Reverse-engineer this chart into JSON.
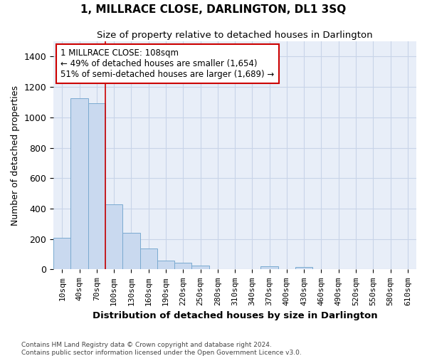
{
  "title": "1, MILLRACE CLOSE, DARLINGTON, DL1 3SQ",
  "subtitle": "Size of property relative to detached houses in Darlington",
  "xlabel": "Distribution of detached houses by size in Darlington",
  "ylabel": "Number of detached properties",
  "categories": [
    "10sqm",
    "40sqm",
    "70sqm",
    "100sqm",
    "130sqm",
    "160sqm",
    "190sqm",
    "220sqm",
    "250sqm",
    "280sqm",
    "310sqm",
    "340sqm",
    "370sqm",
    "400sqm",
    "430sqm",
    "460sqm",
    "490sqm",
    "520sqm",
    "550sqm",
    "580sqm",
    "610sqm"
  ],
  "values": [
    210,
    1125,
    1095,
    430,
    240,
    140,
    60,
    45,
    25,
    0,
    0,
    0,
    20,
    0,
    18,
    0,
    0,
    0,
    0,
    0,
    0
  ],
  "bar_color": "#c9d9ef",
  "bar_edge_color": "#7aaad0",
  "grid_color": "#c8d4e8",
  "background_color": "#e8eef8",
  "vline_color": "#cc0000",
  "vline_x": 2.5,
  "annotation_text": "1 MILLRACE CLOSE: 108sqm\n← 49% of detached houses are smaller (1,654)\n51% of semi-detached houses are larger (1,689) →",
  "annotation_box_edgecolor": "#cc0000",
  "footnote": "Contains HM Land Registry data © Crown copyright and database right 2024.\nContains public sector information licensed under the Open Government Licence v3.0.",
  "ylim": [
    0,
    1500
  ],
  "yticks": [
    0,
    200,
    400,
    600,
    800,
    1000,
    1200,
    1400
  ]
}
